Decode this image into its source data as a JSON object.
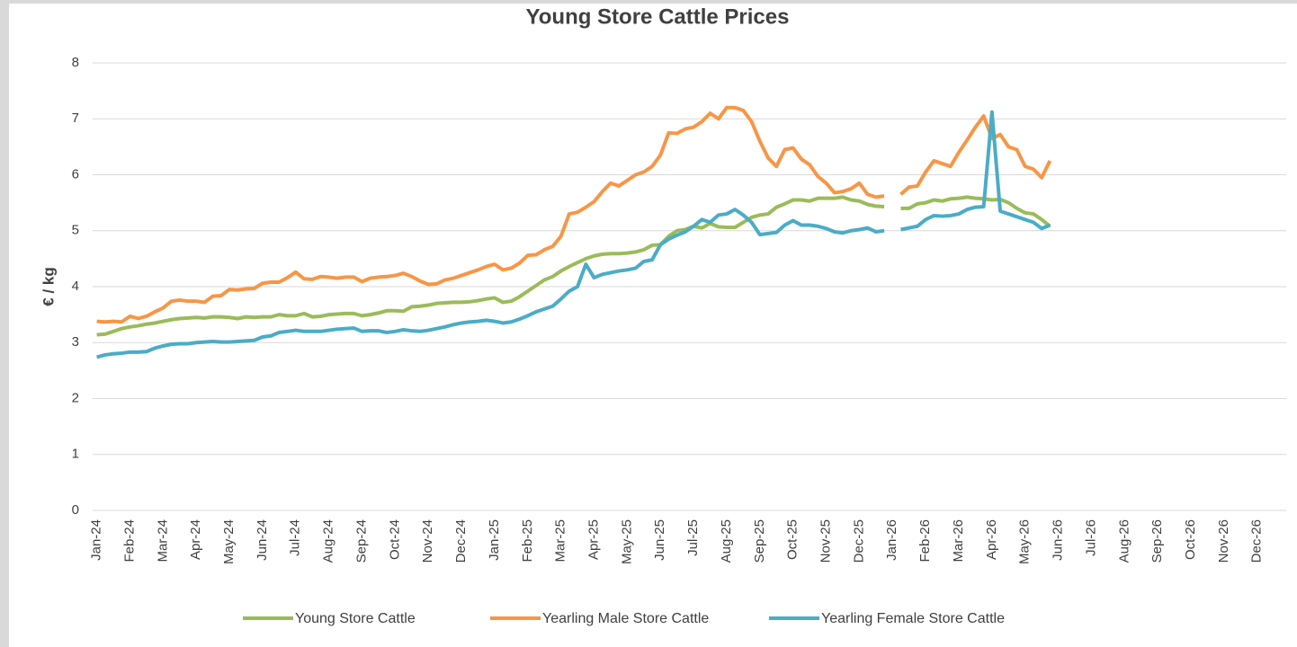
{
  "chart_data": {
    "type": "line",
    "title": "Young Store Cattle Prices",
    "y_label": "€ / kg",
    "categories": [
      "Jan-24",
      null,
      null,
      null,
      "Feb-24",
      null,
      null,
      null,
      "Mar-24",
      null,
      null,
      null,
      "Apr-24",
      null,
      null,
      null,
      "May-24",
      null,
      null,
      null,
      "Jun-24",
      null,
      null,
      null,
      "Jul-24",
      null,
      null,
      null,
      "Aug-24",
      null,
      null,
      null,
      "Sep-24",
      null,
      null,
      null,
      "Oct-24",
      null,
      null,
      null,
      "Nov-24",
      null,
      null,
      null,
      "Dec-24",
      null,
      null,
      null,
      "Jan-25",
      null,
      null,
      null,
      "Feb-25",
      null,
      null,
      null,
      "Mar-25",
      null,
      null,
      null,
      "Apr-25",
      null,
      null,
      null,
      "May-25",
      null,
      null,
      null,
      "Jun-25",
      null,
      null,
      null,
      "Jul-25",
      null,
      null,
      null,
      "Aug-25",
      null,
      null,
      null,
      "Sep-25",
      null,
      null,
      null,
      "Oct-25",
      null,
      null,
      null,
      "Nov-25",
      null,
      null,
      null,
      "Dec-25",
      null,
      null,
      null,
      "Jan-26",
      null,
      null,
      null,
      "Feb-26",
      null,
      null,
      null,
      "Mar-26",
      null,
      null,
      null,
      "Apr-26",
      null,
      null,
      null,
      "May-26",
      null,
      null,
      null,
      "Jun-26",
      null,
      null,
      null,
      "Jul-26",
      null,
      null,
      null,
      "Aug-26",
      null,
      null,
      null,
      "Sep-26",
      null,
      null,
      null,
      "Oct-26",
      null,
      null,
      null,
      "Nov-26",
      null,
      null,
      null,
      "Dec-26",
      null,
      null,
      null
    ],
    "series": [
      {
        "name": "Young Store Cattle",
        "color": "#9bbb59",
        "values": [
          3.14,
          3.15,
          3.2,
          3.25,
          3.28,
          3.3,
          3.33,
          3.35,
          3.38,
          3.41,
          3.43,
          3.44,
          3.45,
          3.44,
          3.46,
          3.46,
          3.45,
          3.43,
          3.46,
          3.45,
          3.46,
          3.46,
          3.5,
          3.48,
          3.48,
          3.52,
          3.46,
          3.47,
          3.5,
          3.51,
          3.52,
          3.52,
          3.48,
          3.5,
          3.53,
          3.57,
          3.57,
          3.56,
          3.64,
          3.65,
          3.67,
          3.7,
          3.71,
          3.72,
          3.72,
          3.73,
          3.75,
          3.78,
          3.8,
          3.72,
          3.74,
          3.82,
          3.92,
          4.02,
          4.12,
          4.18,
          4.28,
          4.36,
          4.43,
          4.5,
          4.55,
          4.58,
          4.59,
          4.59,
          4.6,
          4.62,
          4.66,
          4.74,
          4.75,
          4.9,
          5.0,
          5.02,
          5.08,
          5.05,
          5.13,
          5.07,
          5.06,
          5.06,
          5.15,
          5.24,
          5.28,
          5.3,
          5.42,
          5.48,
          5.55,
          5.55,
          5.53,
          5.58,
          5.58,
          5.58,
          5.6,
          5.55,
          5.53,
          5.47,
          5.44,
          5.43,
          null,
          5.4,
          5.4,
          5.48,
          5.5,
          5.55,
          5.53,
          5.57,
          5.58,
          5.6,
          5.58,
          5.57,
          5.55,
          5.56,
          5.5,
          5.4,
          5.32,
          5.3,
          5.2,
          5.08,
          null,
          null,
          null,
          null,
          null,
          null,
          null,
          null,
          null,
          null,
          null,
          null,
          null,
          null,
          null,
          null,
          null,
          null,
          null,
          null,
          null,
          null,
          null,
          null,
          null,
          null,
          null,
          null
        ]
      },
      {
        "name": "Yearling Male Store Cattle",
        "color": "#f79646",
        "values": [
          3.38,
          3.37,
          3.38,
          3.37,
          3.47,
          3.43,
          3.47,
          3.55,
          3.62,
          3.74,
          3.76,
          3.74,
          3.74,
          3.72,
          3.83,
          3.84,
          3.95,
          3.94,
          3.96,
          3.97,
          4.06,
          4.08,
          4.08,
          4.16,
          4.26,
          4.14,
          4.13,
          4.18,
          4.17,
          4.15,
          4.17,
          4.17,
          4.09,
          4.15,
          4.17,
          4.18,
          4.2,
          4.24,
          4.18,
          4.1,
          4.04,
          4.05,
          4.12,
          4.15,
          4.2,
          4.25,
          4.3,
          4.36,
          4.4,
          4.3,
          4.33,
          4.42,
          4.56,
          4.57,
          4.66,
          4.72,
          4.9,
          5.3,
          5.33,
          5.42,
          5.52,
          5.7,
          5.85,
          5.8,
          5.9,
          6.0,
          6.05,
          6.15,
          6.35,
          6.75,
          6.74,
          6.82,
          6.85,
          6.95,
          7.1,
          7.0,
          7.2,
          7.2,
          7.15,
          6.95,
          6.6,
          6.3,
          6.15,
          6.45,
          6.48,
          6.28,
          6.18,
          5.97,
          5.85,
          5.68,
          5.7,
          5.75,
          5.85,
          5.65,
          5.6,
          5.62,
          null,
          5.65,
          5.78,
          5.8,
          6.05,
          6.25,
          6.2,
          6.15,
          6.4,
          6.62,
          6.85,
          7.05,
          6.65,
          6.72,
          6.5,
          6.45,
          6.15,
          6.1,
          5.95,
          6.25,
          null,
          null,
          null,
          null,
          null,
          null,
          null,
          null,
          null,
          null,
          null,
          null,
          null,
          null,
          null,
          null,
          null,
          null,
          null,
          null,
          null,
          null,
          null,
          null,
          null,
          null,
          null,
          null
        ]
      },
      {
        "name": "Yearling Female Store Cattle",
        "color": "#4bacc6",
        "values": [
          2.74,
          2.78,
          2.8,
          2.81,
          2.83,
          2.83,
          2.84,
          2.9,
          2.94,
          2.97,
          2.98,
          2.98,
          3.0,
          3.01,
          3.02,
          3.01,
          3.01,
          3.02,
          3.03,
          3.04,
          3.1,
          3.12,
          3.18,
          3.2,
          3.22,
          3.2,
          3.2,
          3.2,
          3.22,
          3.24,
          3.25,
          3.26,
          3.2,
          3.21,
          3.21,
          3.18,
          3.2,
          3.23,
          3.21,
          3.2,
          3.22,
          3.25,
          3.28,
          3.32,
          3.35,
          3.37,
          3.38,
          3.4,
          3.38,
          3.35,
          3.37,
          3.42,
          3.48,
          3.55,
          3.6,
          3.65,
          3.78,
          3.92,
          4.0,
          4.4,
          4.16,
          4.22,
          4.25,
          4.28,
          4.3,
          4.33,
          4.45,
          4.48,
          4.75,
          4.85,
          4.92,
          4.98,
          5.08,
          5.2,
          5.15,
          5.28,
          5.3,
          5.38,
          5.28,
          5.15,
          4.93,
          4.95,
          4.97,
          5.1,
          5.18,
          5.1,
          5.1,
          5.08,
          5.04,
          4.98,
          4.96,
          5.0,
          5.02,
          5.05,
          4.98,
          5.0,
          null,
          5.02,
          5.05,
          5.08,
          5.2,
          5.27,
          5.26,
          5.27,
          5.3,
          5.38,
          5.42,
          5.43,
          7.12,
          5.35,
          5.3,
          5.25,
          5.2,
          5.15,
          5.04,
          5.1,
          null,
          null,
          null,
          null,
          null,
          null,
          null,
          null,
          null,
          null,
          null,
          null,
          null,
          null,
          null,
          null,
          null,
          null,
          null,
          null,
          null,
          null,
          null,
          null,
          null,
          null,
          null,
          null
        ]
      }
    ],
    "ylim": [
      0,
      8
    ],
    "yticks": [
      0,
      1,
      2,
      3,
      4,
      5,
      6,
      7,
      8
    ],
    "grid": true,
    "legend": "bottom"
  }
}
